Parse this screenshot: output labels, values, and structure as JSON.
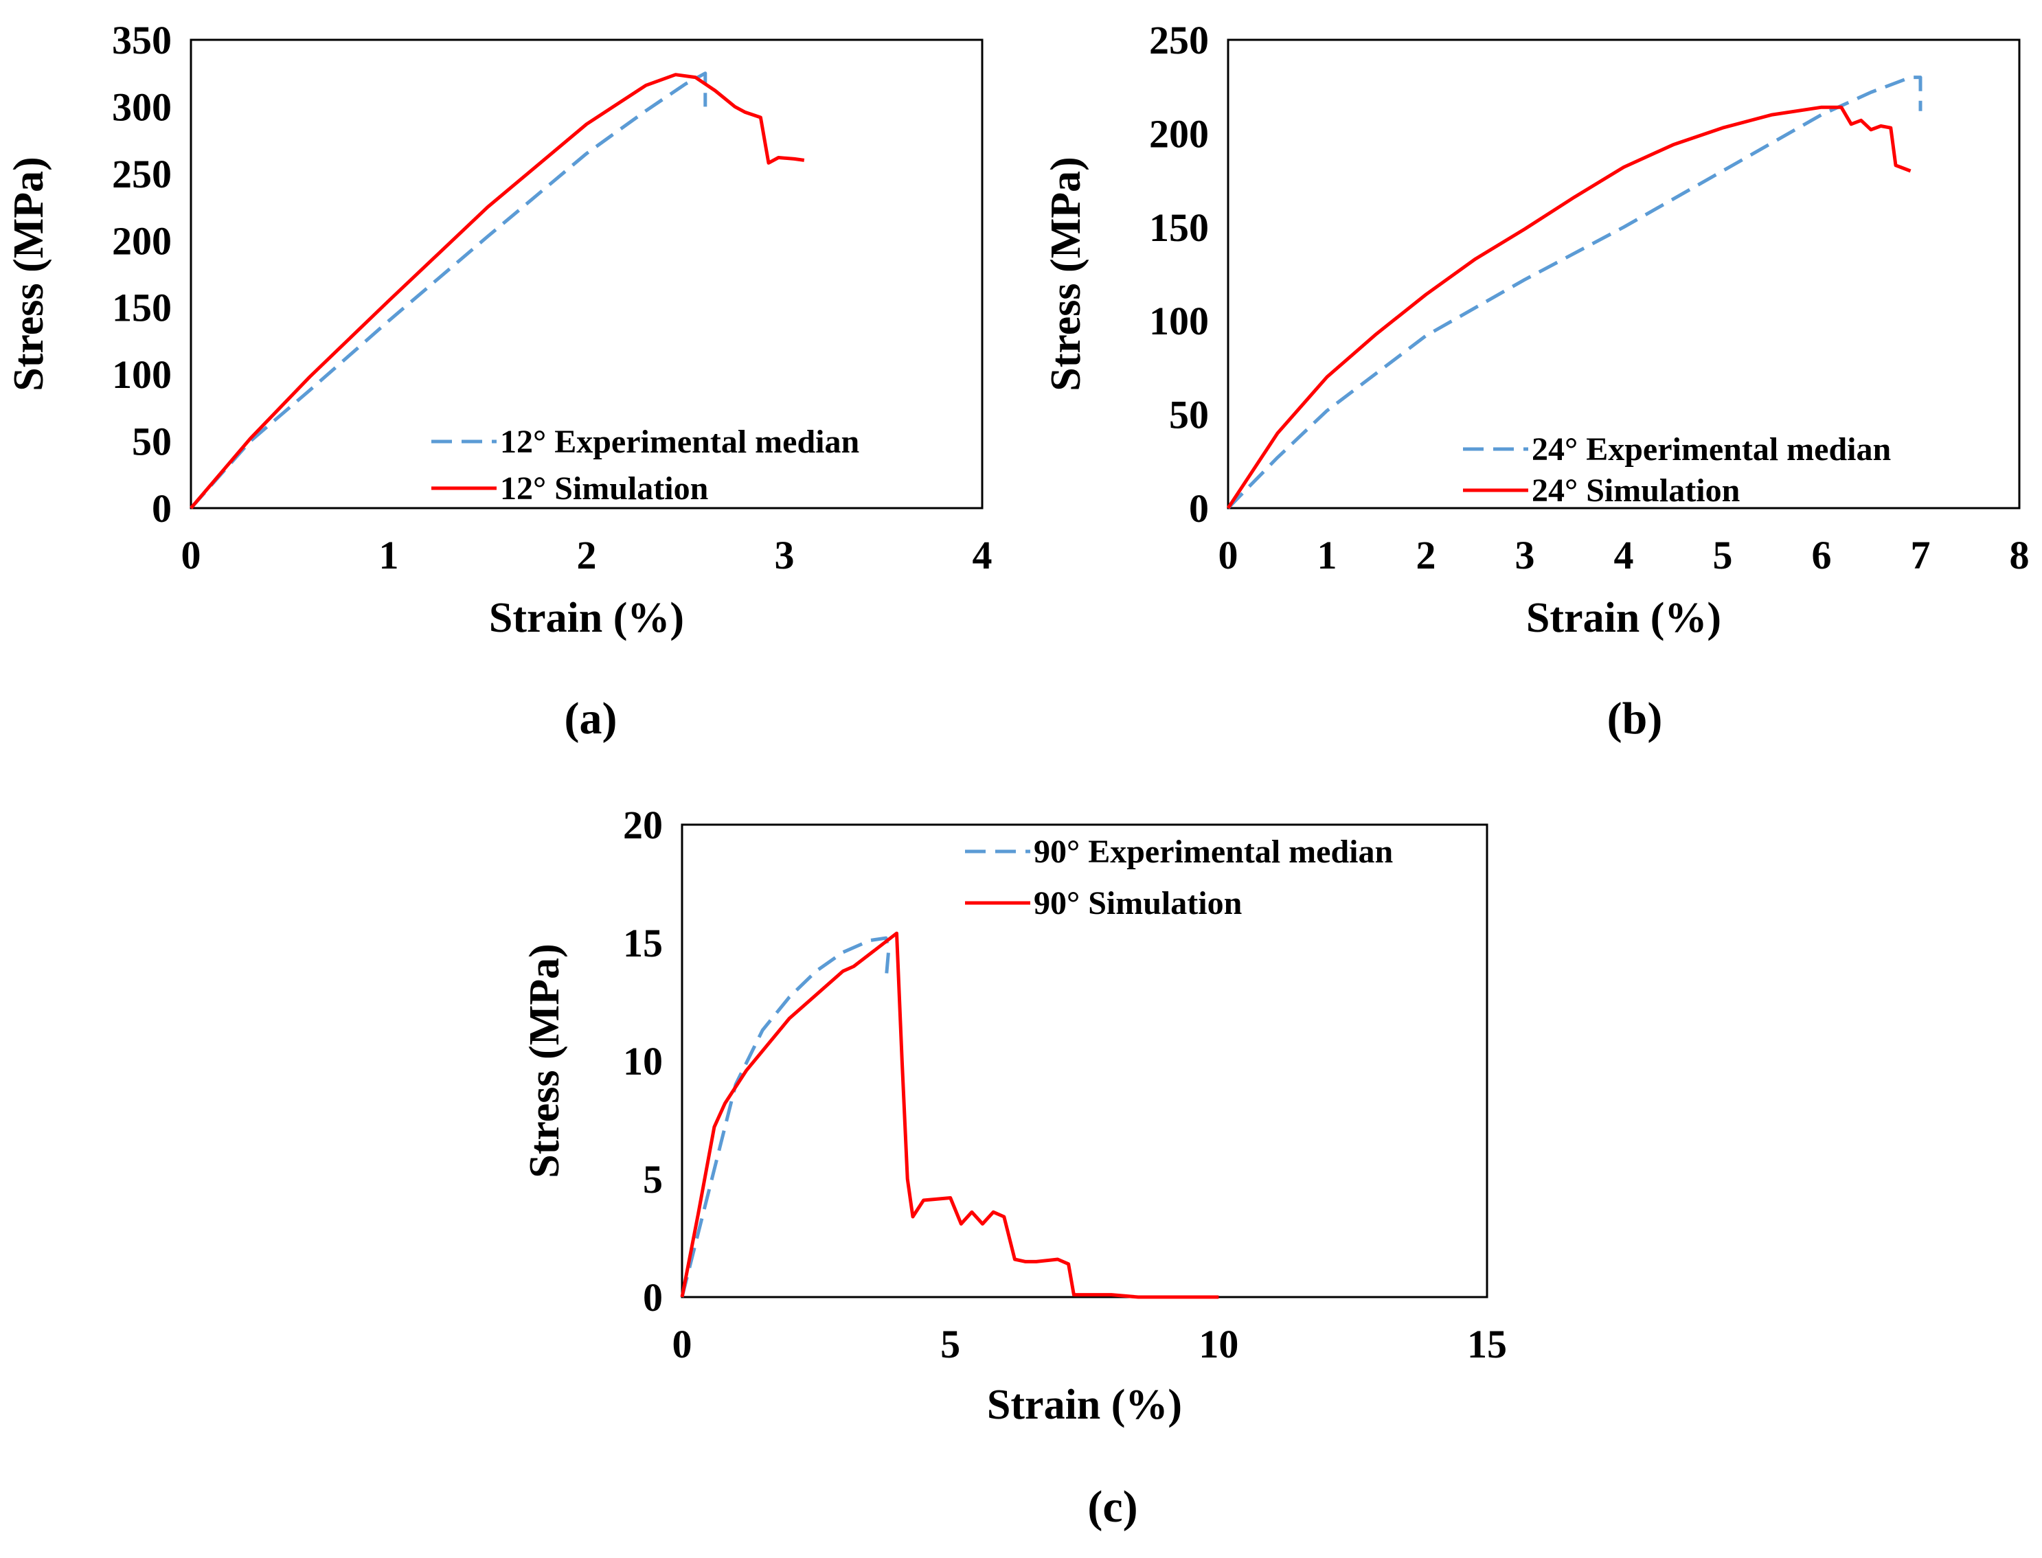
{
  "chart_data": [
    {
      "type": "line",
      "caption": "(a)",
      "xlabel": "Strain (%)",
      "ylabel": "Stress (MPa)",
      "xlim": [
        0,
        4
      ],
      "ylim": [
        0,
        350
      ],
      "xticks": [
        0,
        1,
        2,
        3,
        4
      ],
      "yticks": [
        0,
        50,
        100,
        150,
        200,
        250,
        300,
        350
      ],
      "legend_position": "bottom-right",
      "series": [
        {
          "name": "12° Experimental median",
          "style": "dashed",
          "color": "#5b9bd5",
          "x": [
            0,
            0.3,
            0.6,
            1.0,
            1.5,
            2.0,
            2.3,
            2.5,
            2.6,
            2.6
          ],
          "y": [
            0,
            50,
            88,
            140,
            203,
            265,
            297,
            317,
            325,
            300
          ]
        },
        {
          "name": "12° Simulation",
          "style": "solid",
          "color": "#ff0000",
          "x": [
            0,
            0.3,
            0.6,
            1.0,
            1.5,
            2.0,
            2.3,
            2.45,
            2.55,
            2.65,
            2.75,
            2.8,
            2.88,
            2.92,
            2.97,
            3.05,
            3.1
          ],
          "y": [
            0,
            52,
            98,
            155,
            225,
            287,
            316,
            324,
            322,
            312,
            300,
            296,
            292,
            258,
            262,
            261,
            260
          ]
        }
      ]
    },
    {
      "type": "line",
      "caption": "(b)",
      "xlabel": "Strain (%)",
      "ylabel": "Stress (MPa)",
      "xlim": [
        0,
        8
      ],
      "ylim": [
        0,
        250
      ],
      "xticks": [
        0,
        1,
        2,
        3,
        4,
        5,
        6,
        7,
        8
      ],
      "yticks": [
        0,
        50,
        100,
        150,
        200,
        250
      ],
      "legend_position": "bottom-right",
      "series": [
        {
          "name": "24° Experimental median",
          "style": "dashed",
          "color": "#5b9bd5",
          "x": [
            0,
            0.5,
            1,
            2,
            3,
            4,
            5,
            6,
            6.5,
            6.9,
            7.0,
            7.0
          ],
          "y": [
            0,
            27,
            52,
            92,
            122,
            150,
            180,
            210,
            222,
            230,
            230,
            212
          ]
        },
        {
          "name": "24° Simulation",
          "style": "solid",
          "color": "#ff0000",
          "x": [
            0,
            0.5,
            1,
            1.5,
            2,
            2.5,
            3,
            3.5,
            4,
            4.5,
            5,
            5.5,
            6,
            6.2,
            6.3,
            6.4,
            6.5,
            6.6,
            6.7,
            6.75,
            6.8,
            6.9
          ],
          "y": [
            0,
            40,
            70,
            93,
            114,
            133,
            149,
            166,
            182,
            194,
            203,
            210,
            214,
            214,
            205,
            207,
            202,
            204,
            203,
            183,
            182,
            180
          ]
        }
      ]
    },
    {
      "type": "line",
      "caption": "(c)",
      "xlabel": "Strain (%)",
      "ylabel": "Stress (MPa)",
      "xlim": [
        0,
        15
      ],
      "ylim": [
        0,
        20
      ],
      "xticks": [
        0,
        5,
        10,
        15
      ],
      "yticks": [
        0,
        5,
        10,
        15,
        20
      ],
      "legend_position": "top-right",
      "series": [
        {
          "name": "90° Experimental median",
          "style": "dashed",
          "color": "#5b9bd5",
          "x": [
            0,
            0.5,
            1,
            1.5,
            2,
            2.5,
            3,
            3.5,
            3.8,
            3.85,
            3.8
          ],
          "y": [
            0,
            4.5,
            9,
            11.3,
            12.7,
            13.8,
            14.6,
            15.1,
            15.2,
            14.7,
            13.4
          ]
        },
        {
          "name": "90° Simulation",
          "style": "solid",
          "color": "#ff0000",
          "x": [
            0,
            0.3,
            0.6,
            0.8,
            1.2,
            2,
            2.5,
            3,
            3.2,
            3.6,
            4.0,
            4.1,
            4.2,
            4.3,
            4.5,
            5.0,
            5.2,
            5.4,
            5.6,
            5.8,
            6.0,
            6.2,
            6.4,
            6.6,
            7.0,
            7.2,
            7.3,
            7.5,
            8.0,
            8.5,
            10.0
          ],
          "y": [
            0,
            3.5,
            7.2,
            8.2,
            9.6,
            11.8,
            12.8,
            13.8,
            14.0,
            14.7,
            15.4,
            10.0,
            5.0,
            3.4,
            4.1,
            4.2,
            3.1,
            3.6,
            3.1,
            3.6,
            3.4,
            1.6,
            1.5,
            1.5,
            1.6,
            1.4,
            0.1,
            0.1,
            0.1,
            0,
            0
          ]
        }
      ]
    }
  ]
}
